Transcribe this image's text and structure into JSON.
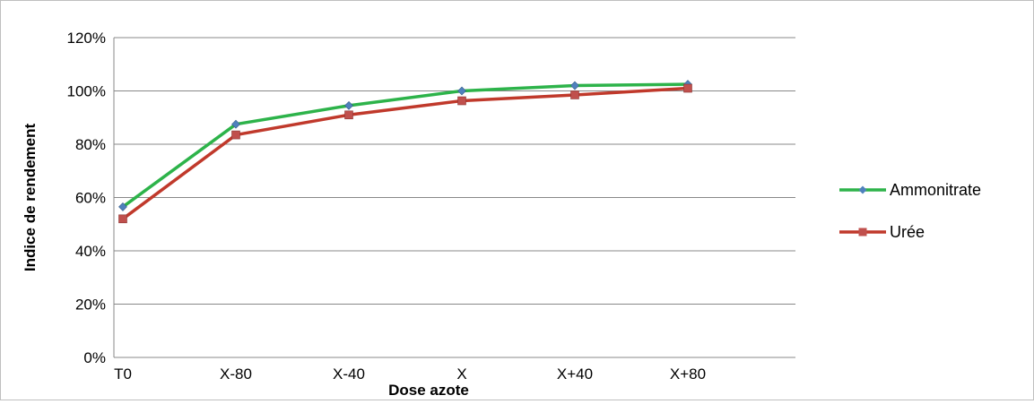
{
  "chart_data": {
    "type": "line",
    "title": "",
    "xlabel": "Dose azote",
    "ylabel": "Indice de rendement",
    "categories": [
      "T0",
      "X-80",
      "X-40",
      "X",
      "X+40",
      "X+80"
    ],
    "y_ticks": [
      "0%",
      "20%",
      "40%",
      "60%",
      "80%",
      "100%",
      "120%"
    ],
    "ylim": [
      0,
      1.2
    ],
    "grid": "horizontal",
    "legend_position": "right",
    "series": [
      {
        "name": "Ammonitrate",
        "color": "#2db34a",
        "marker": "diamond",
        "marker_color": "#4f81bd",
        "values": [
          0.565,
          0.875,
          0.945,
          1.0,
          1.02,
          1.025
        ]
      },
      {
        "name": "Urée",
        "color": "#c0392b",
        "marker": "square",
        "marker_color": "#c0504d",
        "values": [
          0.52,
          0.835,
          0.91,
          0.963,
          0.985,
          1.01
        ]
      }
    ]
  }
}
